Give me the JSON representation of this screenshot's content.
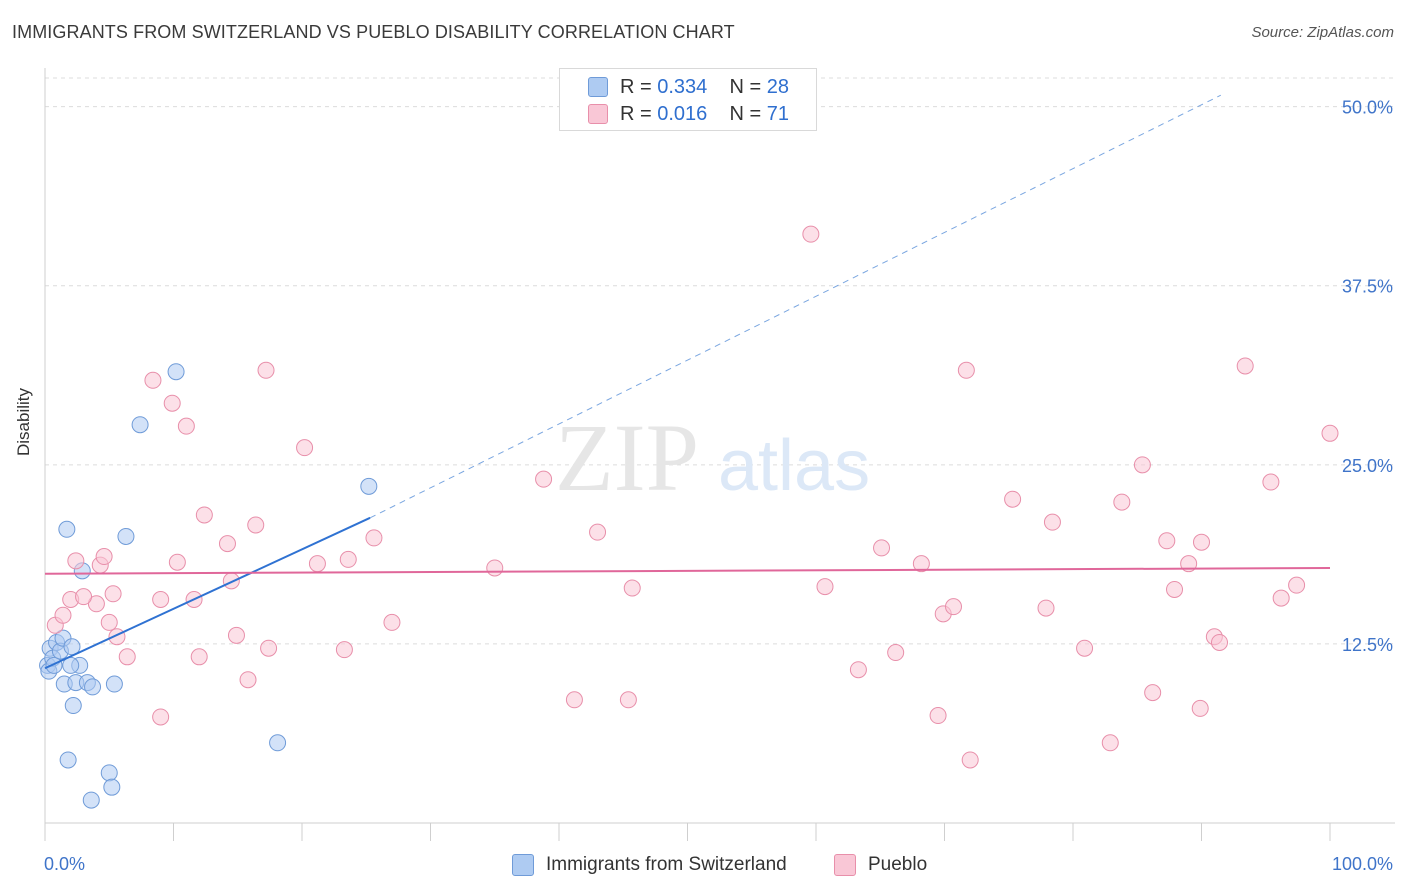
{
  "header": {
    "title": "IMMIGRANTS FROM SWITZERLAND VS PUEBLO DISABILITY CORRELATION CHART",
    "source": "Source: ZipAtlas.com"
  },
  "watermark": {
    "zip": "ZIP",
    "atlas": "atlas"
  },
  "legend_top": {
    "rows": [
      {
        "r_label": "R =",
        "r_value": "0.334",
        "n_label": "N =",
        "n_value": "28",
        "color": "#aecbf2",
        "border": "#6f9bd8"
      },
      {
        "r_label": "R =",
        "r_value": "0.016",
        "n_label": "N =",
        "n_value": "71",
        "color": "#f9c7d6",
        "border": "#e88faa"
      }
    ]
  },
  "legend_bottom": {
    "items": [
      {
        "label": "Immigrants from Switzerland",
        "color": "#aecbf2",
        "border": "#6f9bd8"
      },
      {
        "label": "Pueblo",
        "color": "#f9c7d6",
        "border": "#e88faa"
      }
    ]
  },
  "chart_data": {
    "type": "scatter",
    "title": "IMMIGRANTS FROM SWITZERLAND VS PUEBLO DISABILITY CORRELATION CHART",
    "xlabel": "",
    "ylabel": "Disability",
    "xlim": [
      0,
      100
    ],
    "ylim": [
      0,
      52
    ],
    "x_tick_labels": [
      "0.0%",
      "100.0%"
    ],
    "y_ticks": [
      12.5,
      25.0,
      37.5,
      50.0
    ],
    "y_tick_labels": [
      "12.5%",
      "25.0%",
      "37.5%",
      "50.0%"
    ],
    "grid": true,
    "series": [
      {
        "name": "Immigrants from Switzerland",
        "color": "#6f9bd8",
        "fill": "#aecbf2",
        "trend": {
          "x0": 0,
          "y0": 10.8,
          "x1": 25.3,
          "y1": 21.3,
          "dash_x1": 91.5,
          "dash_y1": 50.8
        },
        "points": [
          [
            0.2,
            11.0
          ],
          [
            0.3,
            10.6
          ],
          [
            0.4,
            12.2
          ],
          [
            0.6,
            11.5
          ],
          [
            0.7,
            11.0
          ],
          [
            0.9,
            12.6
          ],
          [
            1.2,
            12.0
          ],
          [
            1.4,
            12.9
          ],
          [
            1.5,
            9.7
          ],
          [
            1.7,
            20.5
          ],
          [
            1.8,
            4.4
          ],
          [
            2.1,
            12.3
          ],
          [
            2.2,
            8.2
          ],
          [
            2.4,
            9.8
          ],
          [
            2.7,
            11.0
          ],
          [
            2.9,
            17.6
          ],
          [
            3.3,
            9.8
          ],
          [
            3.6,
            1.6
          ],
          [
            3.7,
            9.5
          ],
          [
            5.0,
            3.5
          ],
          [
            5.2,
            2.5
          ],
          [
            5.4,
            9.7
          ],
          [
            6.3,
            20.0
          ],
          [
            7.4,
            27.8
          ],
          [
            10.2,
            31.5
          ],
          [
            18.1,
            5.6
          ],
          [
            25.2,
            23.5
          ],
          [
            2.0,
            11.0
          ]
        ]
      },
      {
        "name": "Pueblo",
        "color": "#e88faa",
        "fill": "#f9c7d6",
        "trend": {
          "x0": 0,
          "y0": 17.4,
          "x1": 100,
          "y1": 17.8
        },
        "points": [
          [
            0.8,
            13.8
          ],
          [
            1.4,
            14.5
          ],
          [
            2.0,
            15.6
          ],
          [
            2.4,
            18.3
          ],
          [
            4.0,
            15.3
          ],
          [
            4.3,
            18.0
          ],
          [
            4.6,
            18.6
          ],
          [
            5.0,
            14.0
          ],
          [
            5.3,
            16.0
          ],
          [
            5.6,
            13.0
          ],
          [
            6.4,
            11.6
          ],
          [
            8.4,
            30.9
          ],
          [
            9.0,
            7.4
          ],
          [
            9.0,
            15.6
          ],
          [
            9.9,
            29.3
          ],
          [
            10.3,
            18.2
          ],
          [
            11.0,
            27.7
          ],
          [
            11.6,
            15.6
          ],
          [
            12.4,
            21.5
          ],
          [
            14.2,
            19.5
          ],
          [
            14.5,
            16.9
          ],
          [
            14.9,
            13.1
          ],
          [
            15.8,
            10.0
          ],
          [
            16.4,
            20.8
          ],
          [
            17.2,
            31.6
          ],
          [
            17.4,
            12.2
          ],
          [
            20.2,
            26.2
          ],
          [
            21.2,
            18.1
          ],
          [
            23.3,
            12.1
          ],
          [
            23.6,
            18.4
          ],
          [
            25.6,
            19.9
          ],
          [
            35.0,
            17.8
          ],
          [
            38.8,
            24.0
          ],
          [
            41.2,
            8.6
          ],
          [
            43.0,
            20.3
          ],
          [
            45.7,
            16.4
          ],
          [
            45.4,
            8.6
          ],
          [
            59.6,
            41.1
          ],
          [
            60.7,
            16.5
          ],
          [
            63.3,
            10.7
          ],
          [
            65.1,
            19.2
          ],
          [
            66.2,
            11.9
          ],
          [
            68.2,
            18.1
          ],
          [
            69.5,
            7.5
          ],
          [
            69.9,
            14.6
          ],
          [
            70.7,
            15.1
          ],
          [
            71.7,
            31.6
          ],
          [
            72.0,
            4.4
          ],
          [
            75.3,
            22.6
          ],
          [
            77.9,
            15.0
          ],
          [
            78.4,
            21.0
          ],
          [
            80.9,
            12.2
          ],
          [
            82.9,
            5.6
          ],
          [
            83.8,
            22.4
          ],
          [
            85.4,
            25.0
          ],
          [
            86.2,
            9.1
          ],
          [
            87.3,
            19.7
          ],
          [
            87.9,
            16.3
          ],
          [
            89.0,
            18.1
          ],
          [
            89.9,
            8.0
          ],
          [
            90.0,
            19.6
          ],
          [
            91.0,
            13.0
          ],
          [
            91.4,
            12.6
          ],
          [
            93.4,
            31.9
          ],
          [
            95.4,
            23.8
          ],
          [
            96.2,
            15.7
          ],
          [
            97.4,
            16.6
          ],
          [
            100.0,
            27.2
          ],
          [
            12.0,
            11.6
          ],
          [
            27.0,
            14.0
          ],
          [
            3.0,
            15.8
          ]
        ]
      }
    ]
  }
}
